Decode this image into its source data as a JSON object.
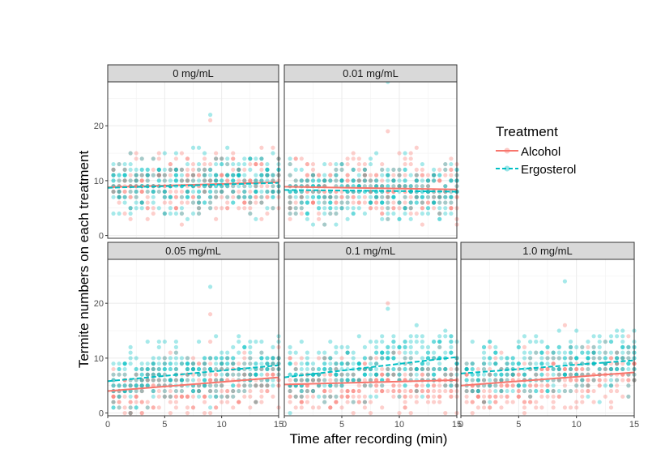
{
  "chart_data": {
    "type": "scatter",
    "layout": "faceted 2x3 grid, 5 panels, legend top-right",
    "xlabel": "Time after recording (min)",
    "ylabel": "Termite numbers on each treatment",
    "xlim": [
      0,
      15
    ],
    "ylim": [
      -0.5,
      28
    ],
    "x_ticks": [
      0,
      5,
      10,
      15
    ],
    "y_ticks": [
      0,
      10,
      20
    ],
    "grid": true,
    "legend": {
      "title": "Treatment",
      "placement": "right",
      "entries": [
        {
          "name": "Alcohol",
          "color": "#F8766D",
          "linestyle": "solid"
        },
        {
          "name": "Ergosterol",
          "color": "#00BFC4",
          "linestyle": "dashed"
        }
      ]
    },
    "panels": [
      {
        "label": "0 mg/mL",
        "trend": {
          "Alcohol": [
            [
              0,
              8.8
            ],
            [
              15,
              9.7
            ]
          ],
          "Ergosterol": [
            [
              0,
              8.7
            ],
            [
              15,
              9.6
            ]
          ]
        },
        "y_range": {
          "Alcohol": [
            0,
            21
          ],
          "Ergosterol": [
            0,
            22
          ]
        }
      },
      {
        "label": "0.01 mg/mL",
        "trend": {
          "Alcohol": [
            [
              0,
              8.9
            ],
            [
              15,
              8.4
            ]
          ],
          "Ergosterol": [
            [
              0,
              8.3
            ],
            [
              15,
              8.0
            ]
          ]
        },
        "y_range": {
          "Alcohol": [
            0,
            19
          ],
          "Ergosterol": [
            0,
            28
          ]
        }
      },
      {
        "label": "0.05 mg/mL",
        "trend": {
          "Alcohol": [
            [
              0,
              4.0
            ],
            [
              15,
              6.5
            ]
          ],
          "Ergosterol": [
            [
              0,
              5.8
            ],
            [
              15,
              8.7
            ]
          ]
        },
        "y_range": {
          "Alcohol": [
            0,
            18
          ],
          "Ergosterol": [
            0,
            23
          ]
        }
      },
      {
        "label": "0.1 mg/mL",
        "trend": {
          "Alcohol": [
            [
              0,
              5.2
            ],
            [
              15,
              6.0
            ]
          ],
          "Ergosterol": [
            [
              0,
              6.5
            ],
            [
              15,
              10.2
            ]
          ]
        },
        "y_range": {
          "Alcohol": [
            0,
            20
          ],
          "Ergosterol": [
            0,
            19
          ]
        }
      },
      {
        "label": "1.0 mg/mL",
        "trend": {
          "Alcohol": [
            [
              0,
              5.0
            ],
            [
              15,
              7.4
            ]
          ],
          "Ergosterol": [
            [
              0,
              7.2
            ],
            [
              15,
              9.6
            ]
          ]
        },
        "y_range": {
          "Alcohol": [
            0,
            16
          ],
          "Ergosterol": [
            0,
            24
          ]
        }
      }
    ]
  }
}
